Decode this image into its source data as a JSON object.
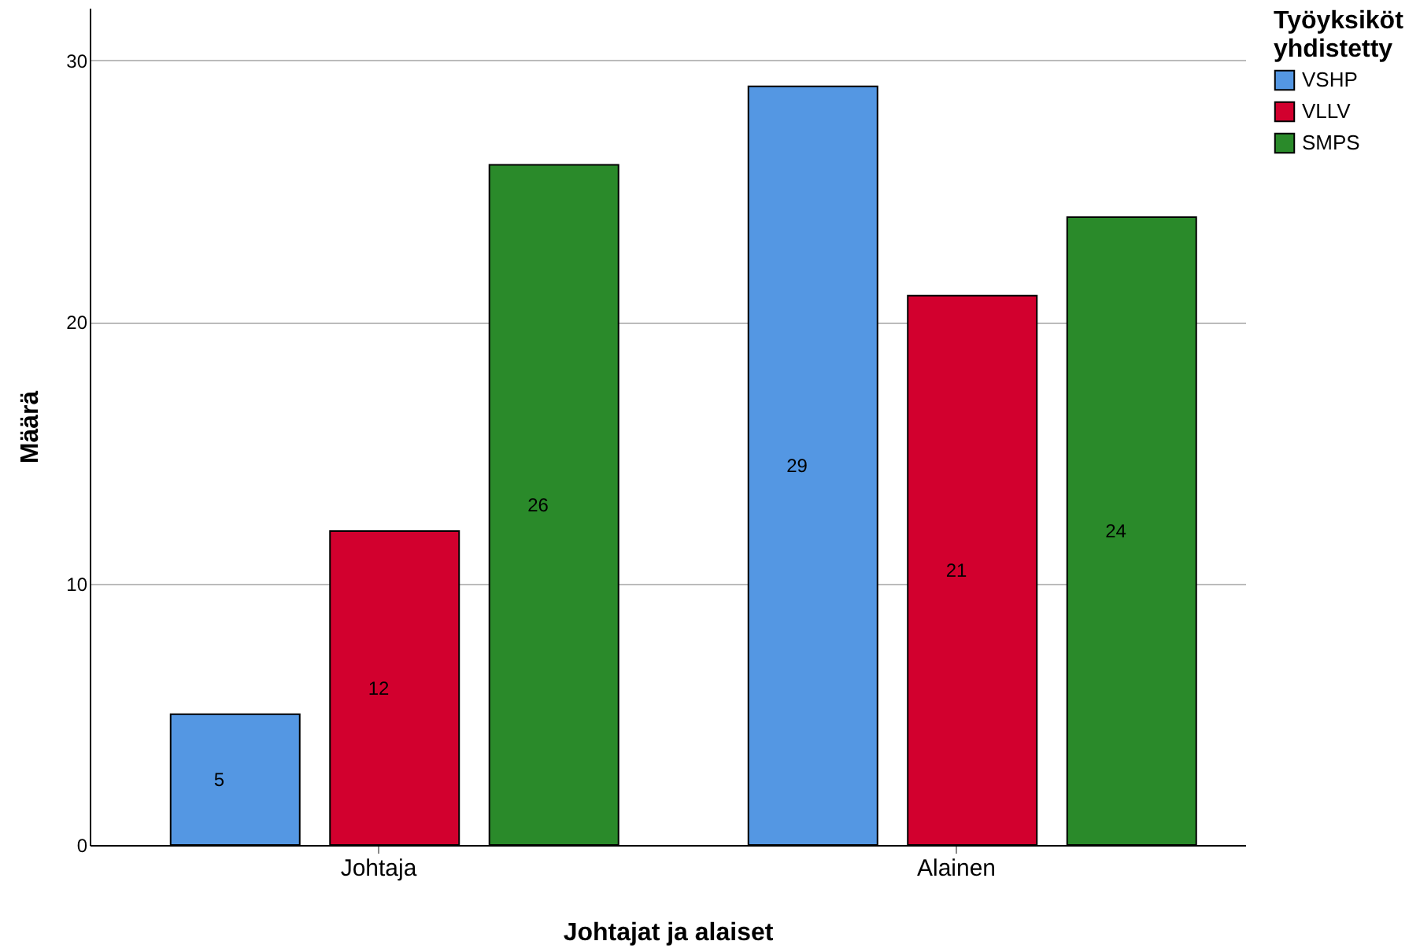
{
  "chart_data": {
    "type": "bar",
    "xlabel": "Johtajat ja alaiset",
    "ylabel": "Määrä",
    "legend_title": "Työyksiköt yhdistetty",
    "categories": [
      "Johtaja",
      "Alainen"
    ],
    "series": [
      {
        "name": "VSHP",
        "color": "#5497e3",
        "values": [
          5,
          29
        ]
      },
      {
        "name": "VLLV",
        "color": "#d2002e",
        "values": [
          12,
          21
        ]
      },
      {
        "name": "SMPS",
        "color": "#2a8a2a",
        "values": [
          26,
          24
        ]
      }
    ],
    "ylim": [
      0,
      32
    ],
    "yticks": [
      0,
      10,
      20,
      30
    ],
    "grid": "y",
    "legend": "top right",
    "data_labels": true
  }
}
